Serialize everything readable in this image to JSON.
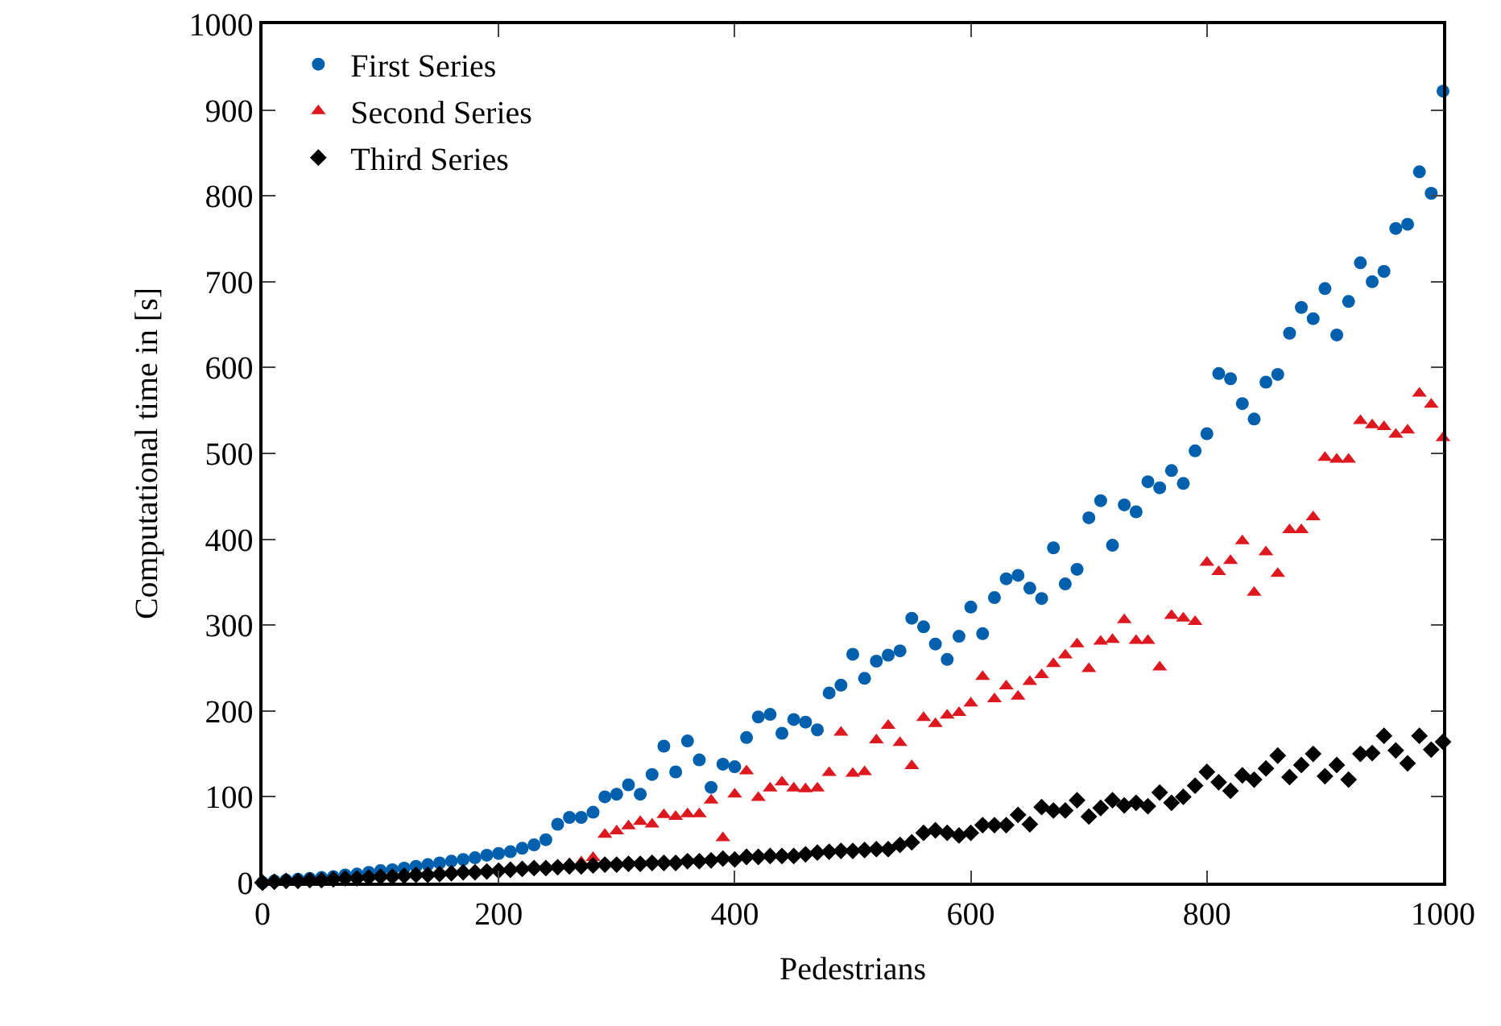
{
  "chart_data": {
    "type": "scatter",
    "xlabel": "Pedestrians",
    "ylabel": "Computational time in [s]",
    "x": [
      0,
      10,
      20,
      30,
      40,
      50,
      60,
      70,
      80,
      90,
      100,
      110,
      120,
      130,
      140,
      150,
      160,
      170,
      180,
      190,
      200,
      210,
      220,
      230,
      240,
      250,
      260,
      270,
      280,
      290,
      300,
      310,
      320,
      330,
      340,
      350,
      360,
      370,
      380,
      390,
      400,
      410,
      420,
      430,
      440,
      450,
      460,
      470,
      480,
      490,
      500,
      510,
      520,
      530,
      540,
      550,
      560,
      570,
      580,
      590,
      600,
      610,
      620,
      630,
      640,
      650,
      660,
      670,
      680,
      690,
      700,
      710,
      720,
      730,
      740,
      750,
      760,
      770,
      780,
      790,
      800,
      810,
      820,
      830,
      840,
      850,
      860,
      870,
      880,
      890,
      900,
      910,
      920,
      930,
      940,
      950,
      960,
      970,
      980,
      990,
      1000
    ],
    "series": [
      {
        "name": "First Series",
        "color": "#0060ad",
        "marker": "circle",
        "values": [
          0,
          2,
          3,
          4,
          5,
          6,
          7,
          9,
          10,
          12,
          14,
          15,
          17,
          19,
          21,
          23,
          25,
          27,
          29,
          32,
          34,
          36,
          40,
          44,
          50,
          68,
          76,
          76,
          82,
          100,
          103,
          114,
          103,
          126,
          159,
          129,
          165,
          143,
          111,
          138,
          135,
          169,
          193,
          196,
          174,
          190,
          187,
          178,
          221,
          230,
          266,
          238,
          258,
          265,
          270,
          308,
          298,
          278,
          260,
          287,
          321,
          290,
          332,
          354,
          358,
          343,
          331,
          390,
          348,
          365,
          425,
          445,
          393,
          440,
          432,
          467,
          460,
          480,
          465,
          503,
          523,
          593,
          587,
          558,
          540,
          583,
          592,
          640,
          670,
          657,
          692,
          638,
          677,
          722,
          700,
          712,
          762,
          767,
          828,
          803,
          922
        ]
      },
      {
        "name": "Second Series",
        "color": "#dd181f",
        "marker": "triangle",
        "values": [
          null,
          null,
          null,
          null,
          null,
          null,
          null,
          null,
          null,
          null,
          null,
          null,
          null,
          null,
          null,
          null,
          null,
          null,
          null,
          null,
          null,
          null,
          null,
          null,
          null,
          null,
          22,
          24,
          29,
          56,
          60,
          66,
          71,
          68,
          79,
          77,
          80,
          80,
          96,
          52,
          103,
          130,
          99,
          110,
          117,
          110,
          109,
          110,
          128,
          175,
          127,
          129,
          166,
          183,
          163,
          136,
          192,
          185,
          195,
          198,
          209,
          240,
          214,
          229,
          217,
          234,
          242,
          255,
          265,
          278,
          249,
          281,
          283,
          306,
          282,
          282,
          251,
          311,
          308,
          304,
          373,
          362,
          375,
          398,
          338,
          385,
          360,
          411,
          411,
          426,
          495,
          493,
          493,
          538,
          533,
          531,
          522,
          527,
          570,
          557,
          518
        ]
      },
      {
        "name": "Third Series",
        "color": "#000000",
        "marker": "diamond",
        "values": [
          0,
          1,
          2,
          2,
          3,
          3,
          4,
          5,
          5,
          6,
          7,
          7,
          8,
          9,
          9,
          10,
          11,
          12,
          12,
          13,
          14,
          15,
          16,
          17,
          17,
          18,
          19,
          19,
          20,
          21,
          21,
          22,
          22,
          23,
          23,
          23,
          25,
          25,
          26,
          28,
          27,
          30,
          30,
          31,
          31,
          31,
          33,
          35,
          36,
          37,
          37,
          38,
          39,
          39,
          44,
          47,
          58,
          61,
          58,
          55,
          58,
          67,
          67,
          67,
          79,
          68,
          88,
          84,
          84,
          96,
          77,
          87,
          96,
          90,
          93,
          89,
          105,
          93,
          100,
          113,
          129,
          117,
          107,
          125,
          120,
          133,
          148,
          123,
          137,
          150,
          124,
          137,
          120,
          150,
          151,
          171,
          154,
          139,
          171,
          155,
          164
        ]
      }
    ],
    "xlim": [
      0,
      1000
    ],
    "xticks": [
      0,
      200,
      400,
      600,
      800,
      1000
    ],
    "ylim": [
      0,
      1000
    ],
    "yticks": [
      0,
      100,
      200,
      300,
      400,
      500,
      600,
      700,
      800,
      900,
      1000
    ],
    "grid": false,
    "legend": "top left"
  }
}
